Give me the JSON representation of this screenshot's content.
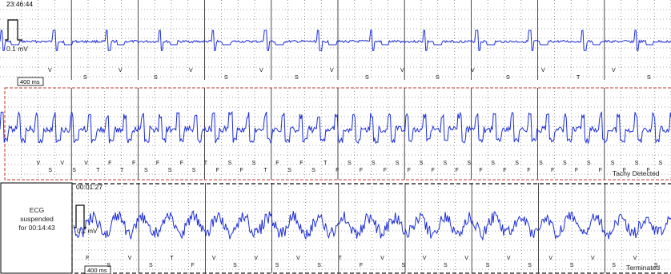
{
  "strip1": {
    "timestamp": "23:46:44",
    "amplitude_label": "0.1 mV",
    "time_scale_label": "400 ms",
    "beat_markers": [
      "V",
      "S",
      "V",
      "S",
      "V",
      "S",
      "V",
      "S",
      "V",
      "S",
      "V",
      "S",
      "V",
      "S",
      "V",
      "T",
      "V",
      "S"
    ]
  },
  "strip2": {
    "status_text": "Tachy Detected",
    "beat_markers": [
      "V",
      "S",
      "V",
      "S",
      "V",
      "T",
      "F",
      "T",
      "F",
      "S",
      "F",
      "S",
      "F",
      "S",
      "T",
      "F",
      "S",
      "F",
      "S",
      "T",
      "F",
      "S",
      "F",
      "S",
      "T",
      "F",
      "S",
      "F",
      "S",
      "F",
      "S",
      "F",
      "S",
      "F",
      "S",
      "F",
      "S",
      "F",
      "S",
      "F",
      "S",
      "F",
      "S",
      "F",
      "S",
      "F",
      "S",
      "F",
      "S",
      "F",
      "S",
      "F",
      "S"
    ]
  },
  "strip3": {
    "suspended_lines": [
      "ECG",
      "suspended",
      "for 00:14:43"
    ],
    "timestamp": "00:01:27",
    "amplitude_label": "0.1 mV",
    "time_scale_label": "400 ms",
    "status_text": "Terminated",
    "beat_markers": [
      "F",
      "S",
      "V",
      "S",
      "T",
      "F",
      "V",
      "S",
      "V",
      "S",
      "V",
      "S",
      "T",
      "F",
      "V",
      "S",
      "V",
      "S",
      "V",
      "S",
      "V",
      "S",
      "V",
      "S",
      "V",
      "S",
      "V",
      "S"
    ]
  },
  "colors": {
    "trace": "#1f2fd6",
    "grid_major": "#222222",
    "grid_minor": "#555555",
    "tachy_border": "#c0392b",
    "dashed_border": "#111111"
  }
}
